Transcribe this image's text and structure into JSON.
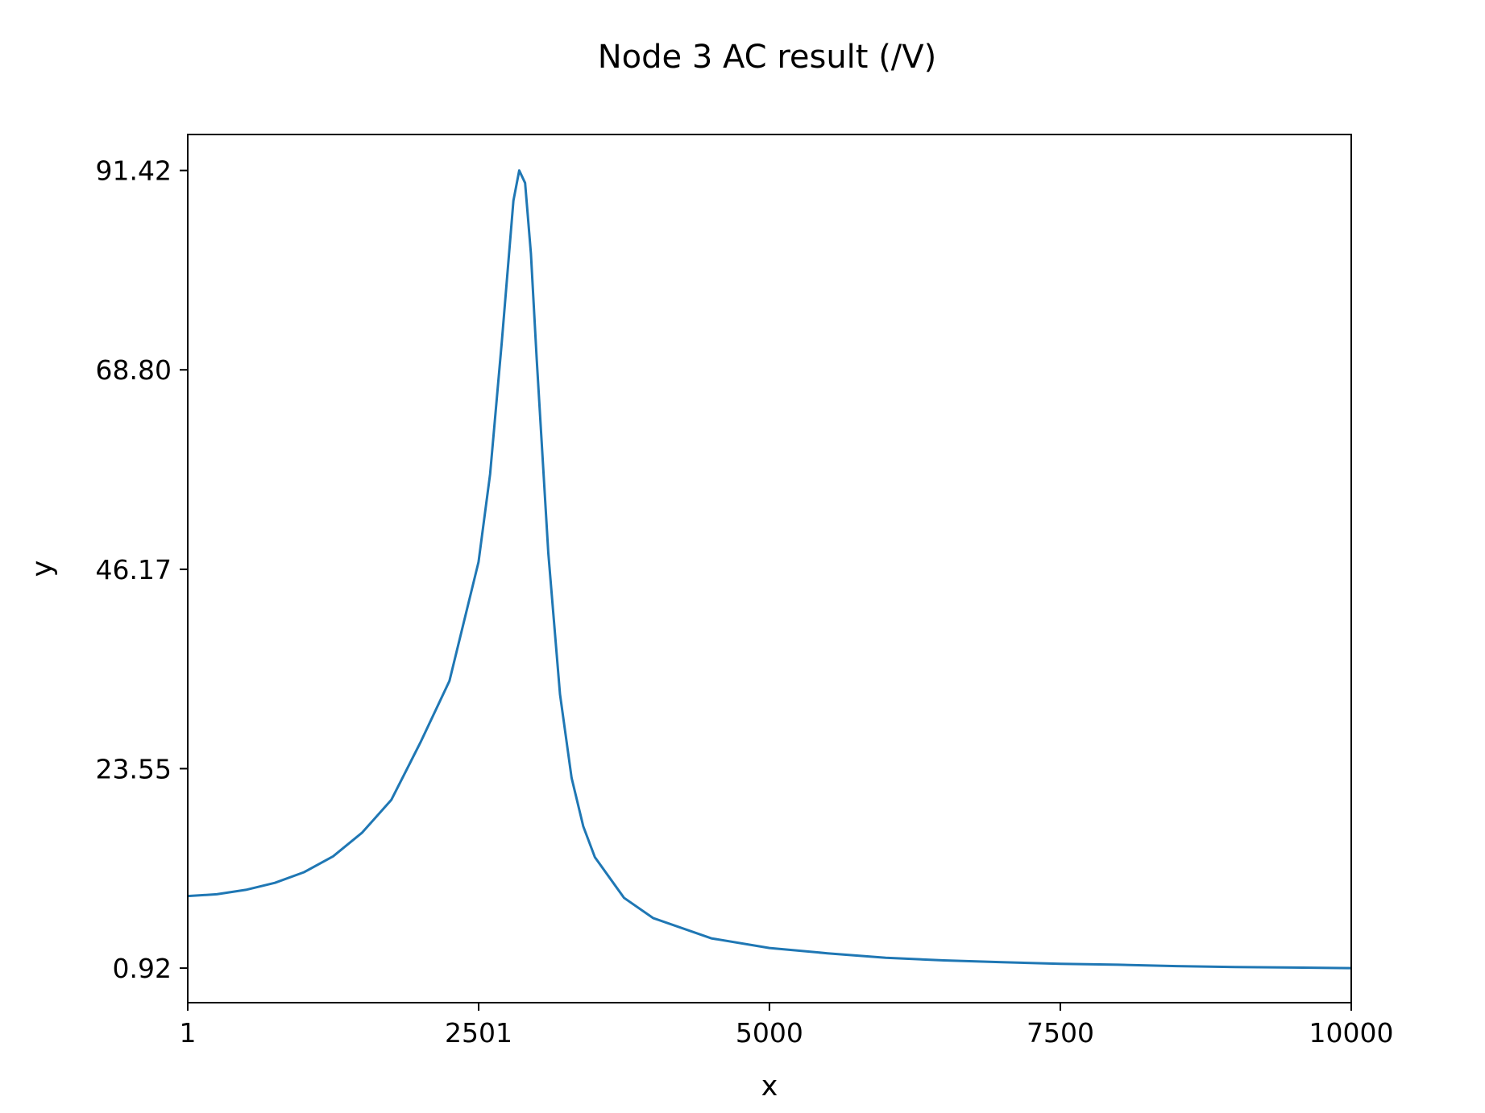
{
  "chart_data": {
    "type": "line",
    "title": "Node 3 AC result (/V)",
    "xlabel": "x",
    "ylabel": "y",
    "xlim": [
      1,
      10000
    ],
    "ylim": [
      -3.0,
      95.5
    ],
    "xticks": [
      1,
      2501,
      5000,
      7500,
      10000
    ],
    "xtick_labels": [
      "1",
      "2501",
      "5000",
      "7500",
      "10000"
    ],
    "yticks": [
      0.92,
      23.55,
      46.17,
      68.8,
      91.42
    ],
    "ytick_labels": [
      "0.92",
      "23.55",
      "46.17",
      "68.80",
      "91.42"
    ],
    "grid": false,
    "legend": "none",
    "series": [
      {
        "color": "#1f77b4",
        "x": [
          1,
          250,
          500,
          750,
          1000,
          1250,
          1500,
          1750,
          2000,
          2250,
          2500,
          2600,
          2700,
          2800,
          2850,
          2900,
          2950,
          3000,
          3100,
          3200,
          3300,
          3400,
          3500,
          3750,
          4000,
          4500,
          5000,
          5500,
          6000,
          6500,
          7000,
          7500,
          8000,
          8500,
          9000,
          9500,
          10000
        ],
        "y": [
          9.1,
          9.3,
          9.8,
          10.6,
          11.8,
          13.6,
          16.3,
          20.0,
          26.5,
          33.5,
          47.0,
          57.0,
          72.0,
          88.0,
          91.42,
          90.0,
          82.0,
          70.0,
          48.0,
          32.0,
          22.5,
          17.0,
          13.5,
          8.9,
          6.6,
          4.3,
          3.2,
          2.6,
          2.1,
          1.8,
          1.6,
          1.4,
          1.3,
          1.15,
          1.05,
          0.98,
          0.92
        ]
      }
    ]
  }
}
